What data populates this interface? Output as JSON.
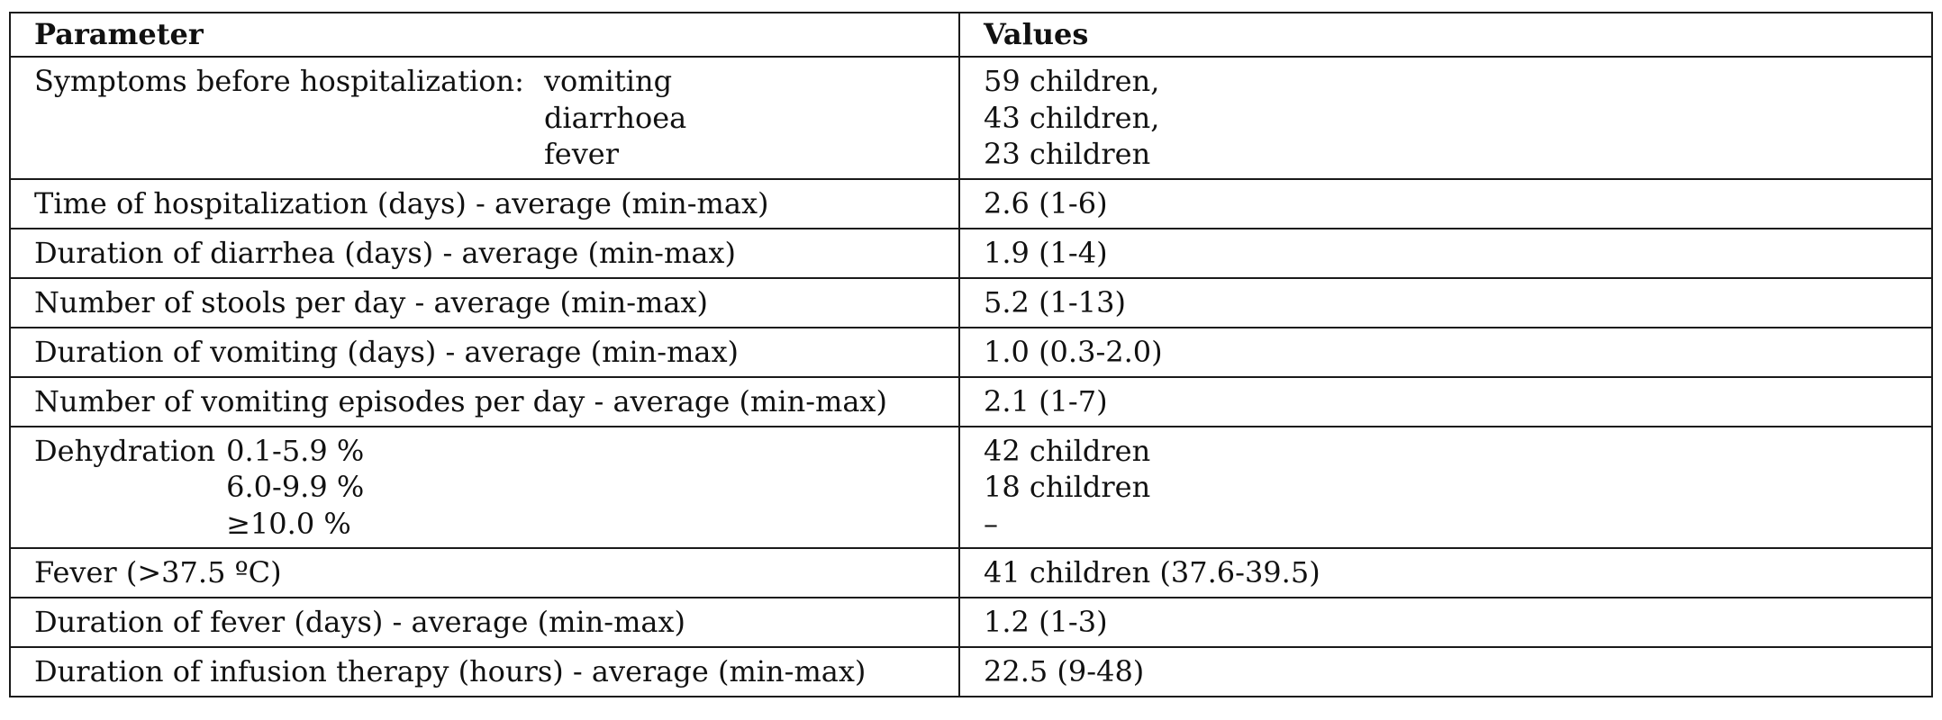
{
  "table": {
    "header": {
      "parameter": "Parameter",
      "values": "Values"
    },
    "symptoms": {
      "label": "Symptoms before hospitalization:",
      "items": [
        "vomiting",
        "diarrhoea",
        "fever"
      ],
      "values": [
        "59 children,",
        "43 children,",
        "23 children"
      ]
    },
    "rows_a": [
      {
        "parameter": "Time of hospitalization (days) - average (min-max)",
        "value": "2.6 (1-6)"
      },
      {
        "parameter": "Duration of diarrhea (days) - average (min-max)",
        "value": "1.9 (1-4)"
      },
      {
        "parameter": "Number of stools per day - average (min-max)",
        "value": "5.2 (1-13)"
      },
      {
        "parameter": "Duration of vomiting (days) - average (min-max)",
        "value": "1.0 (0.3-2.0)"
      },
      {
        "parameter": "Number of vomiting episodes per day - average (min-max)",
        "value": "2.1 (1-7)"
      }
    ],
    "dehydration": {
      "label": "Dehydration",
      "items": [
        "0.1-5.9 %",
        "6.0-9.9 %",
        "≥10.0 %"
      ],
      "values": [
        "42 children",
        "18 children",
        "–"
      ]
    },
    "rows_b": [
      {
        "parameter": "Fever (>37.5 ºC)",
        "value": "41 children (37.6-39.5)"
      },
      {
        "parameter": "Duration of fever (days) - average (min-max)",
        "value": "1.2 (1-3)"
      },
      {
        "parameter": "Duration of infusion therapy (hours) - average (min-max)",
        "value": "22.5 (9-48)"
      }
    ]
  }
}
